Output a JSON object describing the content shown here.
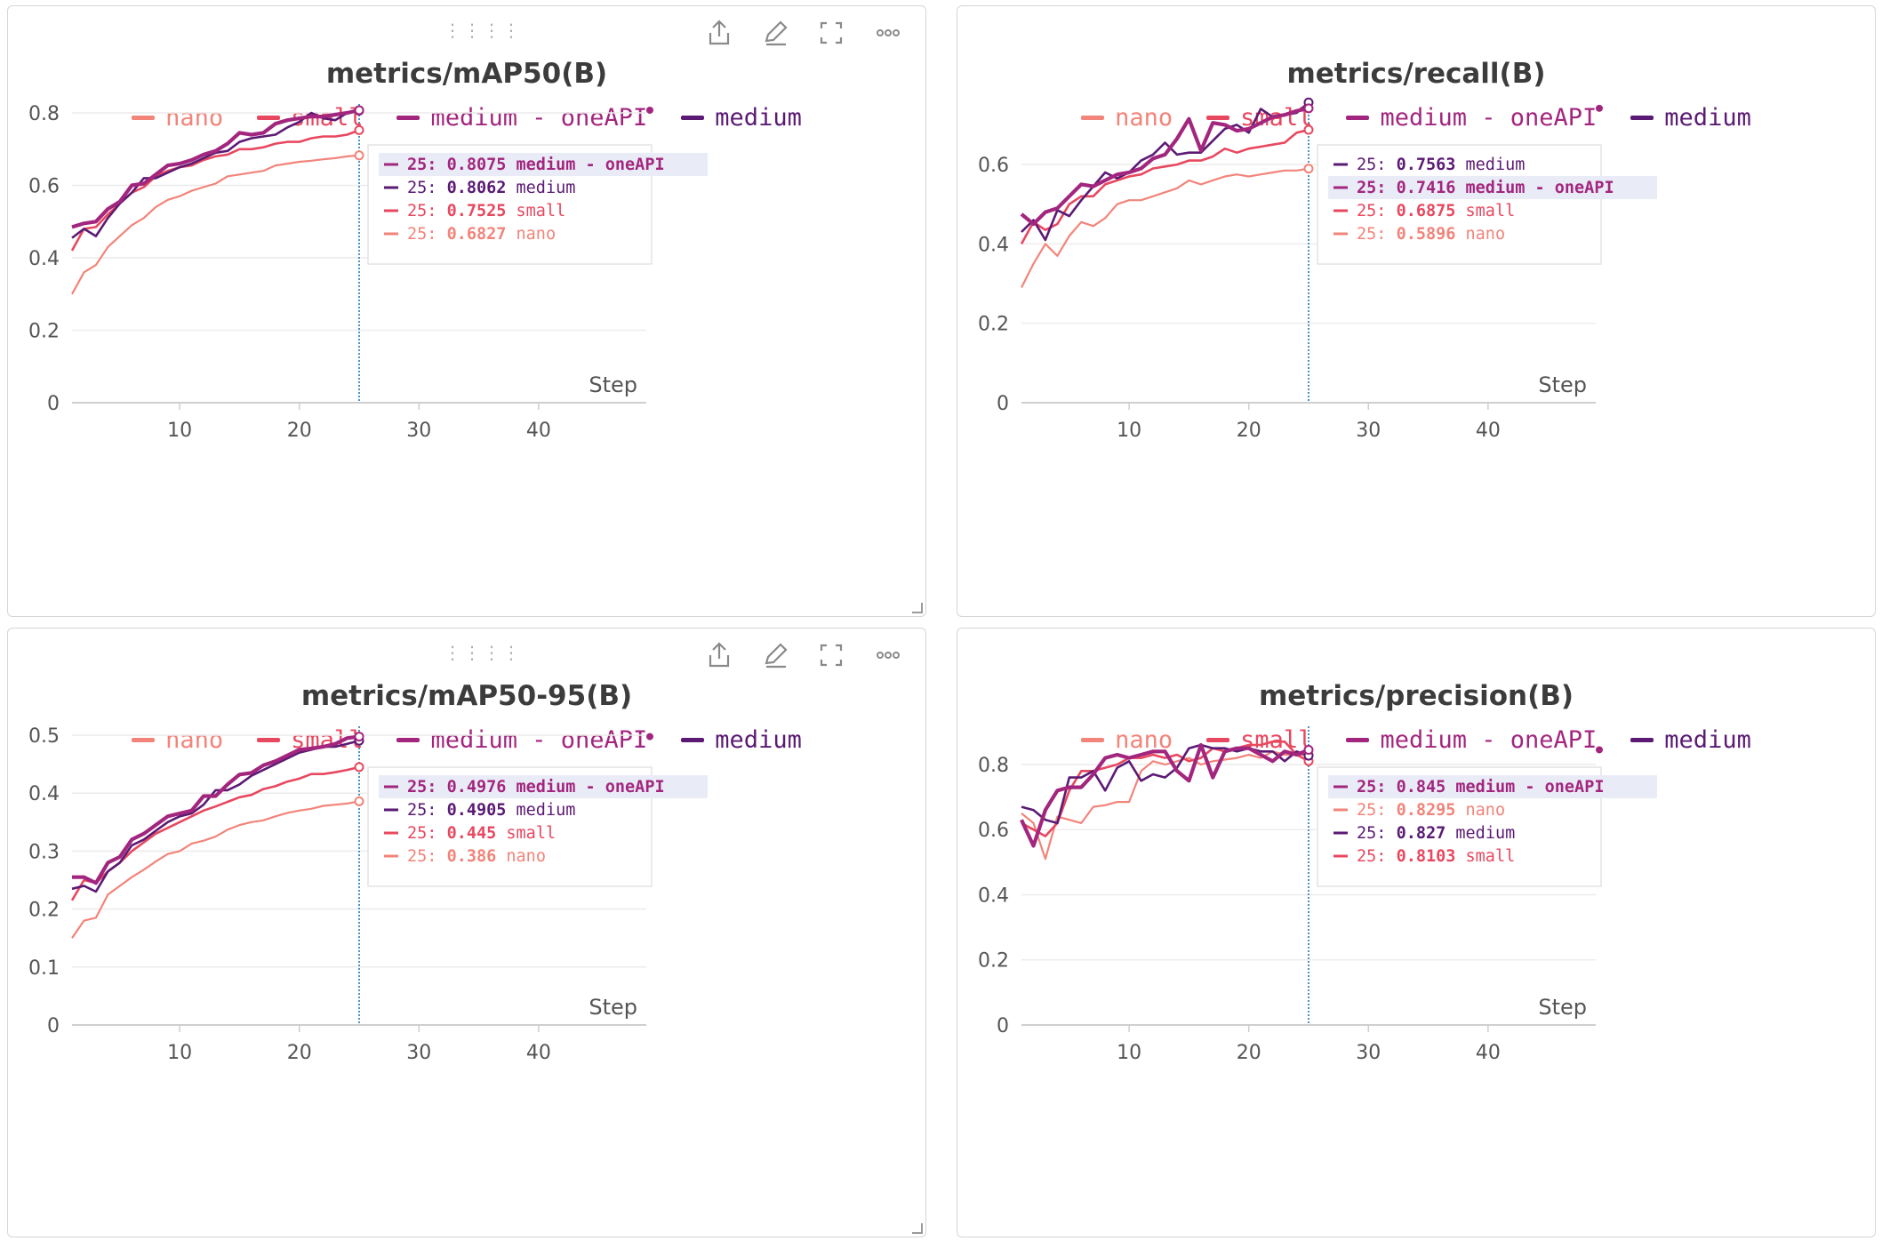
{
  "toolbar": {
    "drag_icon": "drag-handle-icon",
    "share_icon": "share-icon",
    "edit_icon": "pencil-icon",
    "fullscreen_icon": "expand-icon",
    "more_icon": "more-horizontal-icon"
  },
  "colors": {
    "nano": "#f2847a",
    "small": "#e8485f",
    "medium_oneapi": "#a3267e",
    "medium": "#5b1a74",
    "cursor": "#1f77b4",
    "tooltip_highlight": "#e9ecf7"
  },
  "legend": [
    {
      "key": "nano",
      "label": "nano"
    },
    {
      "key": "small",
      "label": "small"
    },
    {
      "key": "medium_oneapi",
      "label": "medium - oneAPI"
    },
    {
      "key": "medium",
      "label": "medium"
    }
  ],
  "chart_data": [
    {
      "id": "map50",
      "type": "line",
      "title": "metrics/mAP50(B)",
      "xlabel": "Step",
      "ylabel": "",
      "xlim": [
        1,
        49
      ],
      "ylim": [
        0,
        0.8
      ],
      "yticks": [
        0,
        0.2,
        0.4,
        0.6,
        0.8
      ],
      "ytick_labels": [
        "0",
        "0.2",
        "0.4",
        "0.6",
        "0.8"
      ],
      "xticks": [
        10,
        20,
        30,
        40
      ],
      "xtick_labels": [
        "10",
        "20",
        "30",
        "40"
      ],
      "grid": true,
      "cursor_step": 25,
      "tooltip": [
        {
          "key": "medium_oneapi",
          "prefix": "25: ",
          "value": "0.8075",
          "name": "medium - oneAPI",
          "highlight": true
        },
        {
          "key": "medium",
          "prefix": "25: ",
          "value": "0.8062",
          "name": "medium",
          "highlight": false
        },
        {
          "key": "small",
          "prefix": "25: ",
          "value": "0.7525",
          "name": "small",
          "highlight": false
        },
        {
          "key": "nano",
          "prefix": "25: ",
          "value": "0.6827",
          "name": "nano",
          "highlight": false
        }
      ],
      "x": [
        1,
        2,
        3,
        4,
        5,
        6,
        7,
        8,
        9,
        10,
        11,
        12,
        13,
        14,
        15,
        16,
        17,
        18,
        19,
        20,
        21,
        22,
        23,
        24,
        25
      ],
      "series": [
        {
          "key": "nano",
          "values": [
            0.3,
            0.36,
            0.38,
            0.43,
            0.46,
            0.49,
            0.51,
            0.54,
            0.56,
            0.57,
            0.585,
            0.595,
            0.605,
            0.625,
            0.63,
            0.635,
            0.64,
            0.655,
            0.66,
            0.665,
            0.668,
            0.672,
            0.675,
            0.68,
            0.6827
          ]
        },
        {
          "key": "small",
          "values": [
            0.42,
            0.48,
            0.485,
            0.52,
            0.55,
            0.58,
            0.595,
            0.625,
            0.64,
            0.65,
            0.655,
            0.67,
            0.68,
            0.685,
            0.7,
            0.7,
            0.705,
            0.715,
            0.72,
            0.72,
            0.73,
            0.735,
            0.735,
            0.74,
            0.7525
          ]
        },
        {
          "key": "medium",
          "values": [
            0.455,
            0.48,
            0.46,
            0.51,
            0.55,
            0.58,
            0.62,
            0.62,
            0.635,
            0.65,
            0.66,
            0.675,
            0.69,
            0.695,
            0.72,
            0.73,
            0.735,
            0.74,
            0.76,
            0.775,
            0.8,
            0.785,
            0.78,
            0.8,
            0.8062
          ]
        },
        {
          "key": "medium_oneapi",
          "values": [
            0.485,
            0.495,
            0.5,
            0.535,
            0.555,
            0.6,
            0.605,
            0.63,
            0.655,
            0.66,
            0.67,
            0.685,
            0.695,
            0.715,
            0.745,
            0.74,
            0.745,
            0.77,
            0.78,
            0.785,
            0.79,
            0.79,
            0.795,
            0.8,
            0.8075
          ]
        }
      ]
    },
    {
      "id": "recall",
      "type": "line",
      "title": "metrics/recall(B)",
      "xlabel": "Step",
      "ylabel": "",
      "xlim": [
        1,
        49
      ],
      "ylim": [
        0,
        0.73
      ],
      "yticks": [
        0,
        0.2,
        0.4,
        0.6
      ],
      "ytick_labels": [
        "0",
        "0.2",
        "0.4",
        "0.6"
      ],
      "xticks": [
        10,
        20,
        30,
        40
      ],
      "xtick_labels": [
        "10",
        "20",
        "30",
        "40"
      ],
      "grid": true,
      "cursor_step": 25,
      "tooltip": [
        {
          "key": "medium",
          "prefix": "25: ",
          "value": "0.7563",
          "name": "medium",
          "highlight": false
        },
        {
          "key": "medium_oneapi",
          "prefix": "25: ",
          "value": "0.7416",
          "name": "medium - oneAPI",
          "highlight": true
        },
        {
          "key": "small",
          "prefix": "25: ",
          "value": "0.6875",
          "name": "small",
          "highlight": false
        },
        {
          "key": "nano",
          "prefix": "25: ",
          "value": "0.5896",
          "name": "nano",
          "highlight": false
        }
      ],
      "x": [
        1,
        2,
        3,
        4,
        5,
        6,
        7,
        8,
        9,
        10,
        11,
        12,
        13,
        14,
        15,
        16,
        17,
        18,
        19,
        20,
        21,
        22,
        23,
        24,
        25
      ],
      "series": [
        {
          "key": "nano",
          "values": [
            0.29,
            0.35,
            0.4,
            0.37,
            0.42,
            0.455,
            0.445,
            0.465,
            0.5,
            0.51,
            0.51,
            0.52,
            0.53,
            0.54,
            0.56,
            0.55,
            0.56,
            0.57,
            0.575,
            0.57,
            0.575,
            0.58,
            0.585,
            0.585,
            0.5896
          ]
        },
        {
          "key": "small",
          "values": [
            0.4,
            0.455,
            0.435,
            0.45,
            0.5,
            0.52,
            0.52,
            0.55,
            0.56,
            0.57,
            0.575,
            0.59,
            0.595,
            0.6,
            0.61,
            0.61,
            0.62,
            0.64,
            0.63,
            0.64,
            0.645,
            0.65,
            0.655,
            0.68,
            0.6875
          ]
        },
        {
          "key": "medium",
          "values": [
            0.43,
            0.46,
            0.41,
            0.485,
            0.47,
            0.51,
            0.545,
            0.58,
            0.565,
            0.58,
            0.61,
            0.625,
            0.655,
            0.625,
            0.63,
            0.63,
            0.66,
            0.69,
            0.7,
            0.68,
            0.74,
            0.72,
            0.725,
            0.73,
            0.7563
          ]
        },
        {
          "key": "medium_oneapi",
          "values": [
            0.475,
            0.45,
            0.48,
            0.49,
            0.52,
            0.55,
            0.545,
            0.56,
            0.575,
            0.58,
            0.59,
            0.615,
            0.625,
            0.665,
            0.715,
            0.635,
            0.705,
            0.7,
            0.685,
            0.69,
            0.705,
            0.72,
            0.725,
            0.735,
            0.7416
          ]
        }
      ]
    },
    {
      "id": "map5095",
      "type": "line",
      "title": "metrics/mAP50-95(B)",
      "xlabel": "Step",
      "ylabel": "",
      "xlim": [
        1,
        49
      ],
      "ylim": [
        0,
        0.5
      ],
      "yticks": [
        0,
        0.1,
        0.2,
        0.3,
        0.4,
        0.5
      ],
      "ytick_labels": [
        "0",
        "0.1",
        "0.2",
        "0.3",
        "0.4",
        "0.5"
      ],
      "xticks": [
        10,
        20,
        30,
        40
      ],
      "xtick_labels": [
        "10",
        "20",
        "30",
        "40"
      ],
      "grid": true,
      "cursor_step": 25,
      "tooltip": [
        {
          "key": "medium_oneapi",
          "prefix": "25: ",
          "value": "0.4976",
          "name": "medium - oneAPI",
          "highlight": true
        },
        {
          "key": "medium",
          "prefix": "25: ",
          "value": "0.4905",
          "name": "medium",
          "highlight": false
        },
        {
          "key": "small",
          "prefix": "25: ",
          "value": "0.445",
          "name": "small",
          "highlight": false
        },
        {
          "key": "nano",
          "prefix": "25: ",
          "value": "0.386",
          "name": "nano",
          "highlight": false
        }
      ],
      "x": [
        1,
        2,
        3,
        4,
        5,
        6,
        7,
        8,
        9,
        10,
        11,
        12,
        13,
        14,
        15,
        16,
        17,
        18,
        19,
        20,
        21,
        22,
        23,
        24,
        25
      ],
      "series": [
        {
          "key": "nano",
          "values": [
            0.15,
            0.18,
            0.185,
            0.225,
            0.24,
            0.255,
            0.268,
            0.282,
            0.295,
            0.3,
            0.313,
            0.318,
            0.325,
            0.337,
            0.345,
            0.35,
            0.353,
            0.36,
            0.366,
            0.37,
            0.373,
            0.378,
            0.38,
            0.382,
            0.386
          ]
        },
        {
          "key": "small",
          "values": [
            0.215,
            0.25,
            0.245,
            0.265,
            0.28,
            0.3,
            0.315,
            0.33,
            0.34,
            0.35,
            0.36,
            0.37,
            0.377,
            0.385,
            0.393,
            0.397,
            0.407,
            0.412,
            0.42,
            0.425,
            0.433,
            0.433,
            0.436,
            0.44,
            0.445
          ]
        },
        {
          "key": "medium",
          "values": [
            0.235,
            0.24,
            0.23,
            0.265,
            0.28,
            0.31,
            0.32,
            0.335,
            0.35,
            0.36,
            0.365,
            0.38,
            0.405,
            0.405,
            0.415,
            0.43,
            0.44,
            0.45,
            0.46,
            0.47,
            0.475,
            0.48,
            0.48,
            0.485,
            0.4905
          ]
        },
        {
          "key": "medium_oneapi",
          "values": [
            0.255,
            0.255,
            0.245,
            0.28,
            0.29,
            0.32,
            0.33,
            0.345,
            0.36,
            0.365,
            0.37,
            0.395,
            0.395,
            0.415,
            0.432,
            0.435,
            0.448,
            0.455,
            0.465,
            0.475,
            0.477,
            0.48,
            0.485,
            0.495,
            0.4976
          ]
        }
      ]
    },
    {
      "id": "precision",
      "type": "line",
      "title": "metrics/precision(B)",
      "xlabel": "Step",
      "ylabel": "",
      "xlim": [
        1,
        49
      ],
      "ylim": [
        0,
        0.89
      ],
      "yticks": [
        0,
        0.2,
        0.4,
        0.6,
        0.8
      ],
      "ytick_labels": [
        "0",
        "0.2",
        "0.4",
        "0.6",
        "0.8"
      ],
      "xticks": [
        10,
        20,
        30,
        40
      ],
      "xtick_labels": [
        "10",
        "20",
        "30",
        "40"
      ],
      "grid": true,
      "cursor_step": 25,
      "tooltip": [
        {
          "key": "medium_oneapi",
          "prefix": "25: ",
          "value": "0.845",
          "name": "medium - oneAPI",
          "highlight": true
        },
        {
          "key": "nano",
          "prefix": "25: ",
          "value": "0.8295",
          "name": "nano",
          "highlight": false
        },
        {
          "key": "medium",
          "prefix": "25: ",
          "value": "0.827",
          "name": "medium",
          "highlight": false
        },
        {
          "key": "small",
          "prefix": "25: ",
          "value": "0.8103",
          "name": "small",
          "highlight": false
        }
      ],
      "x": [
        1,
        2,
        3,
        4,
        5,
        6,
        7,
        8,
        9,
        10,
        11,
        12,
        13,
        14,
        15,
        16,
        17,
        18,
        19,
        20,
        21,
        22,
        23,
        24,
        25
      ],
      "series": [
        {
          "key": "nano",
          "values": [
            0.65,
            0.62,
            0.51,
            0.64,
            0.63,
            0.62,
            0.67,
            0.675,
            0.685,
            0.685,
            0.78,
            0.81,
            0.8,
            0.81,
            0.82,
            0.8,
            0.81,
            0.815,
            0.82,
            0.83,
            0.82,
            0.84,
            0.83,
            0.83,
            0.8295
          ]
        },
        {
          "key": "small",
          "values": [
            0.62,
            0.6,
            0.58,
            0.62,
            0.72,
            0.78,
            0.78,
            0.79,
            0.8,
            0.82,
            0.82,
            0.83,
            0.82,
            0.83,
            0.81,
            0.82,
            0.85,
            0.84,
            0.85,
            0.86,
            0.86,
            0.87,
            0.87,
            0.83,
            0.8103
          ]
        },
        {
          "key": "medium",
          "values": [
            0.67,
            0.66,
            0.63,
            0.62,
            0.76,
            0.76,
            0.78,
            0.72,
            0.79,
            0.81,
            0.75,
            0.77,
            0.76,
            0.79,
            0.85,
            0.86,
            0.85,
            0.85,
            0.84,
            0.85,
            0.84,
            0.84,
            0.81,
            0.84,
            0.827
          ]
        },
        {
          "key": "medium_oneapi",
          "values": [
            0.63,
            0.55,
            0.66,
            0.72,
            0.73,
            0.73,
            0.77,
            0.82,
            0.83,
            0.82,
            0.83,
            0.84,
            0.84,
            0.78,
            0.75,
            0.86,
            0.76,
            0.84,
            0.85,
            0.85,
            0.83,
            0.81,
            0.84,
            0.83,
            0.845
          ]
        }
      ]
    }
  ]
}
